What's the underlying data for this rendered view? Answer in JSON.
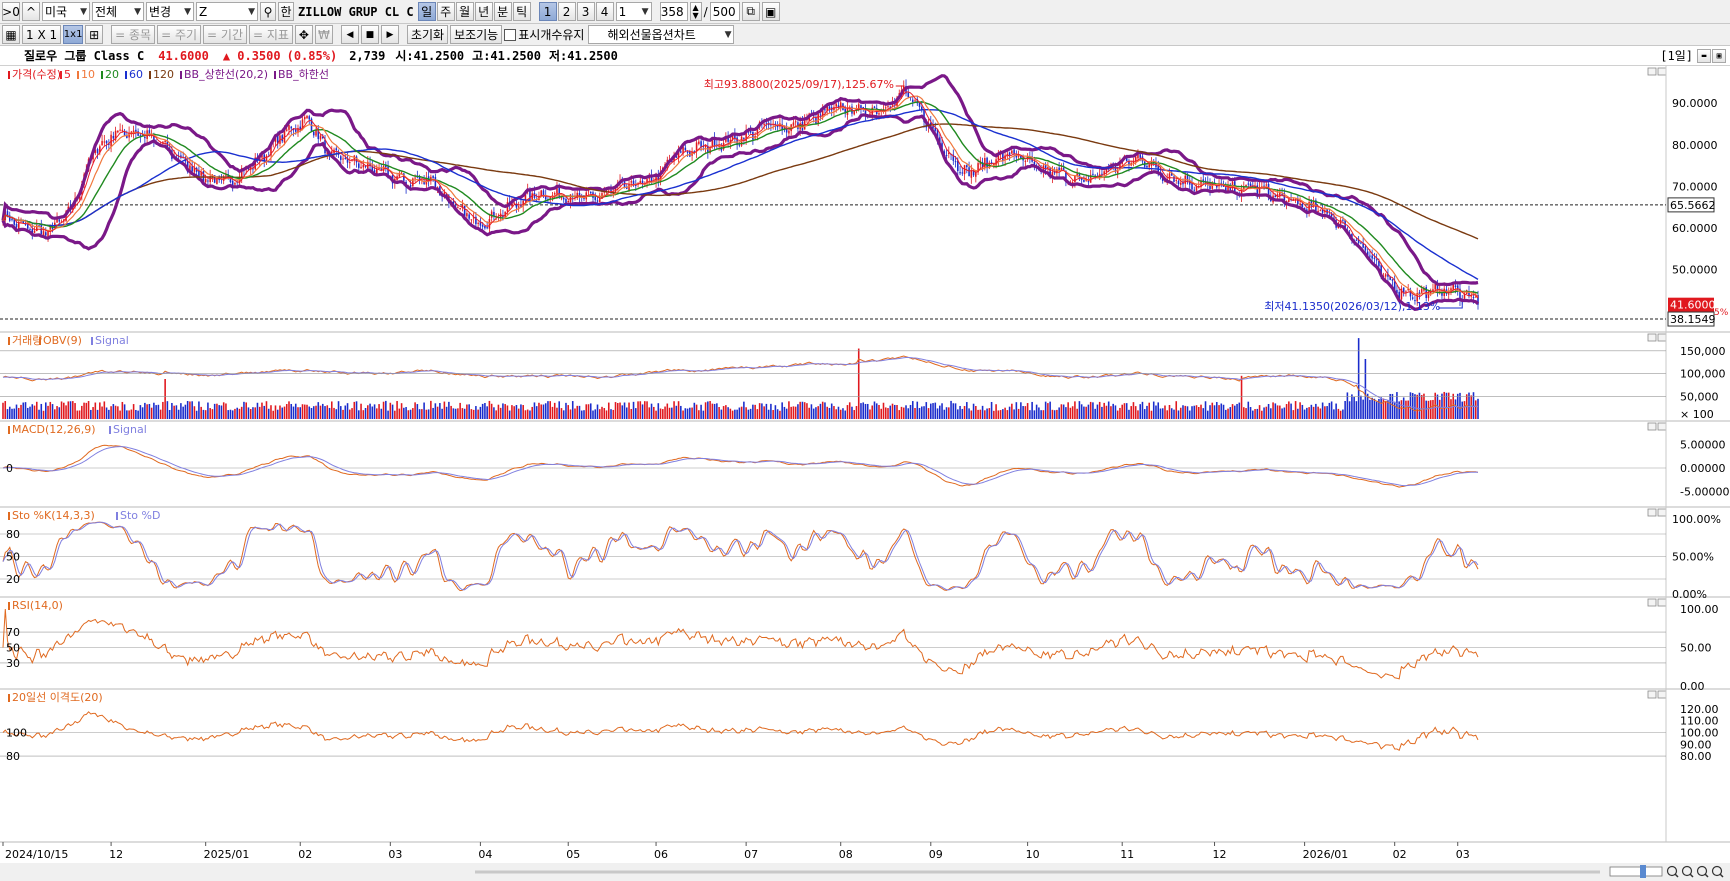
{
  "toolbar1": {
    "menu_btn": ">0",
    "up_btn": "^",
    "market": "미국",
    "filter": "전체",
    "change": "변경",
    "symbol": "Z",
    "han_btn": "한",
    "symbol_name": "ZILLOW GRUP CL C",
    "periods": [
      "일",
      "주",
      "월",
      "년",
      "분",
      "틱"
    ],
    "active_period": 0,
    "counts": [
      "1",
      "2",
      "3",
      "4"
    ],
    "active_count": 0,
    "interval": "1",
    "bars_shown": "358",
    "bars_total": "500"
  },
  "toolbar2": {
    "layout_1x1": "1 X 1",
    "layout_active": "1x1",
    "btn_item": "= 종목",
    "btn_cycle": "= 주기",
    "btn_period": "= 기간",
    "btn_indicator": "= 지표",
    "btn_reset": "초기화",
    "btn_aux": "보조기능",
    "keep_units_label": "표시개수유지",
    "overseas_chart": "해외선물옵션차트"
  },
  "info": {
    "name": "질로우 그룹 Class C",
    "price": "41.6000",
    "change": "▲ 0.3500",
    "change_pct": "(0.85%)",
    "volume": "2,739",
    "open": "시:41.2500",
    "high": "고:41.2500",
    "low": "저:41.2500",
    "period_tag": "[1일]"
  },
  "colors": {
    "up": "#e0181e",
    "down": "#1a2ccc",
    "ma5": "#e8202a",
    "ma10": "#f0783c",
    "ma20": "#208a20",
    "ma60": "#1a30d0",
    "ma120": "#7a3a10",
    "bb": "#7a1888",
    "orange": "#e06a20",
    "lavender": "#8080e0"
  },
  "chart_data": [
    {
      "type": "candlestick",
      "legend": [
        "가격(수정)",
        "5",
        "10",
        "20",
        "60",
        "120",
        "BB_상한선(20,2)",
        "BB_하한선"
      ],
      "x_ticks": [
        "2024/10/15",
        "12",
        "2025/01",
        "02",
        "03",
        "04",
        "05",
        "06",
        "07",
        "08",
        "09",
        "10",
        "11",
        "12",
        "2026/01",
        "02",
        "03"
      ],
      "y_ticks": [
        "90.0000",
        "80.0000",
        "70.0000",
        "60.0000",
        "50.0000"
      ],
      "ylim": [
        36,
        97
      ],
      "anchors": [
        [
          0,
          63
        ],
        [
          10,
          60
        ],
        [
          20,
          59
        ],
        [
          30,
          64
        ],
        [
          40,
          78
        ],
        [
          50,
          83
        ],
        [
          60,
          83
        ],
        [
          70,
          80
        ],
        [
          80,
          76
        ],
        [
          90,
          72
        ],
        [
          100,
          71
        ],
        [
          115,
          77
        ],
        [
          125,
          83
        ],
        [
          136,
          86
        ],
        [
          144,
          78
        ],
        [
          155,
          76
        ],
        [
          165,
          74
        ],
        [
          180,
          71
        ],
        [
          190,
          72
        ],
        [
          200,
          65
        ],
        [
          212,
          61
        ],
        [
          222,
          64
        ],
        [
          235,
          68
        ],
        [
          250,
          68
        ],
        [
          262,
          67
        ],
        [
          275,
          70
        ],
        [
          288,
          71
        ],
        [
          300,
          78
        ],
        [
          315,
          80
        ],
        [
          330,
          82
        ],
        [
          340,
          85
        ],
        [
          350,
          84
        ],
        [
          370,
          89
        ],
        [
          385,
          88
        ],
        [
          395,
          90
        ],
        [
          400,
          93
        ],
        [
          410,
          86
        ],
        [
          418,
          79
        ],
        [
          428,
          73
        ],
        [
          438,
          76
        ],
        [
          448,
          78
        ],
        [
          460,
          74
        ],
        [
          470,
          73
        ],
        [
          480,
          71
        ],
        [
          490,
          74
        ],
        [
          500,
          76
        ],
        [
          505,
          77
        ],
        [
          515,
          73
        ],
        [
          525,
          71
        ],
        [
          538,
          70
        ],
        [
          548,
          69
        ],
        [
          556,
          70
        ],
        [
          568,
          67
        ],
        [
          580,
          65
        ],
        [
          590,
          63
        ],
        [
          605,
          55
        ],
        [
          612,
          49
        ],
        [
          620,
          45
        ],
        [
          628,
          44
        ],
        [
          636,
          45
        ],
        [
          644,
          45
        ],
        [
          650,
          44
        ],
        [
          655,
          43.5
        ]
      ],
      "n": 656,
      "hline_high": 65.5662,
      "hline_low": 38.1549,
      "high_label": "최고93.8800(2025/09/17),125.67%",
      "low_label": "최저41.1350(2026/03/12),1.13%",
      "hline_label": "65.5662",
      "price_label": "41.6000",
      "low_value_label": "38.1549",
      "low_pct_label": "5%"
    },
    {
      "type": "bar",
      "legend": [
        "거래량",
        "OBV(9)",
        "Signal"
      ],
      "y_ticks": [
        "150,000",
        "100,000",
        "50,000",
        "× 100"
      ]
    },
    {
      "type": "line",
      "legend": [
        "MACD(12,26,9)",
        "Signal"
      ],
      "y_ticks": [
        "5.00000",
        "0.00000",
        "-5.00000"
      ],
      "left_tick": "0"
    },
    {
      "type": "line",
      "legend": [
        "Sto %K(14,3,3)",
        "Sto %D"
      ],
      "y_ticks": [
        "100.00%",
        "50.00%",
        "0.00%"
      ],
      "left_ticks": [
        "80",
        "50",
        "20"
      ]
    },
    {
      "type": "line",
      "legend": [
        "RSI(14,0)"
      ],
      "y_ticks": [
        "100.00",
        "50.00",
        "0.00"
      ],
      "left_ticks": [
        "70",
        "50",
        "30"
      ]
    },
    {
      "type": "line",
      "legend": [
        "20일선 이격도(20)"
      ],
      "y_ticks": [
        "120.00",
        "110.00",
        "100.00",
        "90.00",
        "80.00"
      ],
      "left_ticks": [
        "100",
        "80"
      ]
    }
  ]
}
